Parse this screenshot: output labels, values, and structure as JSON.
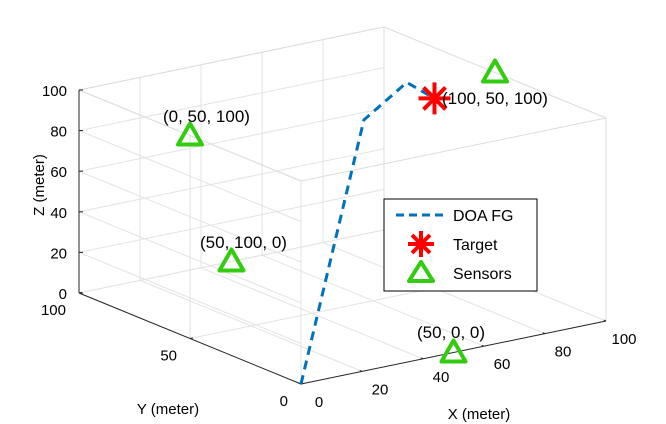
{
  "chart_data": {
    "type": "scatter",
    "projection": "3d",
    "title": "",
    "xlabel": "X (meter)",
    "ylabel": "Y (meter)",
    "zlabel": "Z (meter)",
    "xlim": [
      0,
      100
    ],
    "ylim": [
      0,
      100
    ],
    "zlim": [
      0,
      100
    ],
    "xticks": [
      "0",
      "20",
      "40",
      "60",
      "80",
      "100"
    ],
    "yticks": [
      "0",
      "50",
      "100"
    ],
    "zticks": [
      "0",
      "20",
      "40",
      "60",
      "80",
      "100"
    ],
    "grid": true,
    "box": true,
    "legend_position": "right",
    "series": [
      {
        "name": "DOA FG",
        "kind": "line",
        "style": "dashed",
        "color": "#0072bd",
        "points": [
          [
            0,
            0,
            0
          ],
          [
            57,
            50,
            90
          ],
          [
            82,
            65,
            94
          ],
          [
            86,
            58,
            88
          ]
        ]
      },
      {
        "name": "Target",
        "kind": "marker",
        "marker": "asterisk",
        "color": "#ff0000",
        "points": [
          [
            86,
            58,
            88
          ]
        ]
      },
      {
        "name": "Sensors",
        "kind": "marker",
        "marker": "triangle",
        "color": "#33cc11",
        "points": [
          [
            0,
            50,
            100
          ],
          [
            100,
            50,
            100
          ],
          [
            50,
            100,
            0
          ],
          [
            50,
            0,
            0
          ]
        ]
      }
    ],
    "annotations": [
      "(0, 50, 100)",
      "(100, 50, 100)",
      "(50, 100, 0)",
      "(50, 0, 0)"
    ]
  }
}
